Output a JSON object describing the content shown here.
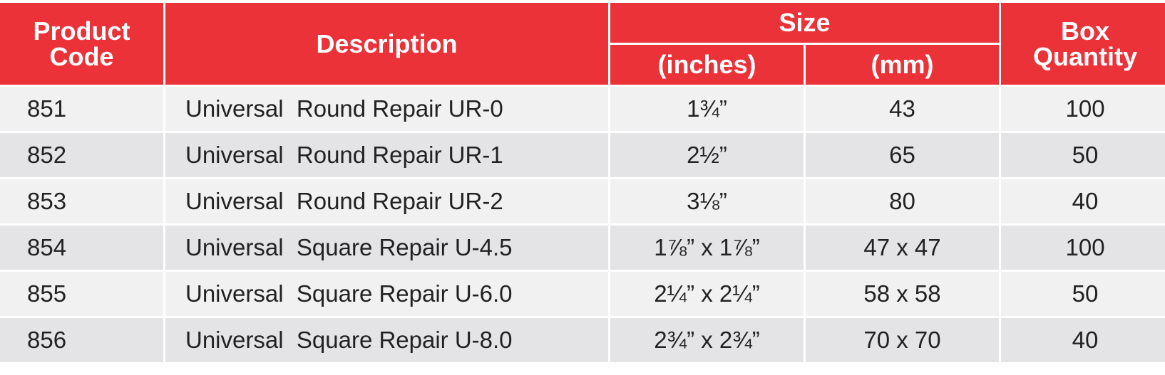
{
  "table": {
    "header": {
      "product_code": "Product Code",
      "description": "Description",
      "size": "Size",
      "inches": "(inches)",
      "mm": "(mm)",
      "box_quantity": "Box Quantity"
    },
    "rows": [
      [
        "851",
        "Universal  Round Repair UR-0",
        "1¾”",
        "43",
        "100"
      ],
      [
        "852",
        "Universal  Round Repair UR-1",
        "2½”",
        "65",
        "50"
      ],
      [
        "853",
        "Universal  Round Repair UR-2",
        "3⅛”",
        "80",
        "40"
      ],
      [
        "854",
        "Universal  Square Repair U-4.5",
        "1⅞” x 1⅞”",
        "47 x 47",
        "100"
      ],
      [
        "855",
        "Universal  Square Repair U-6.0",
        "2¼” x 2¼”",
        "58 x 58",
        "50"
      ],
      [
        "856",
        "Universal  Square Repair U-8.0",
        "2¾” x 2¾”",
        "70 x 70",
        "40"
      ]
    ]
  }
}
